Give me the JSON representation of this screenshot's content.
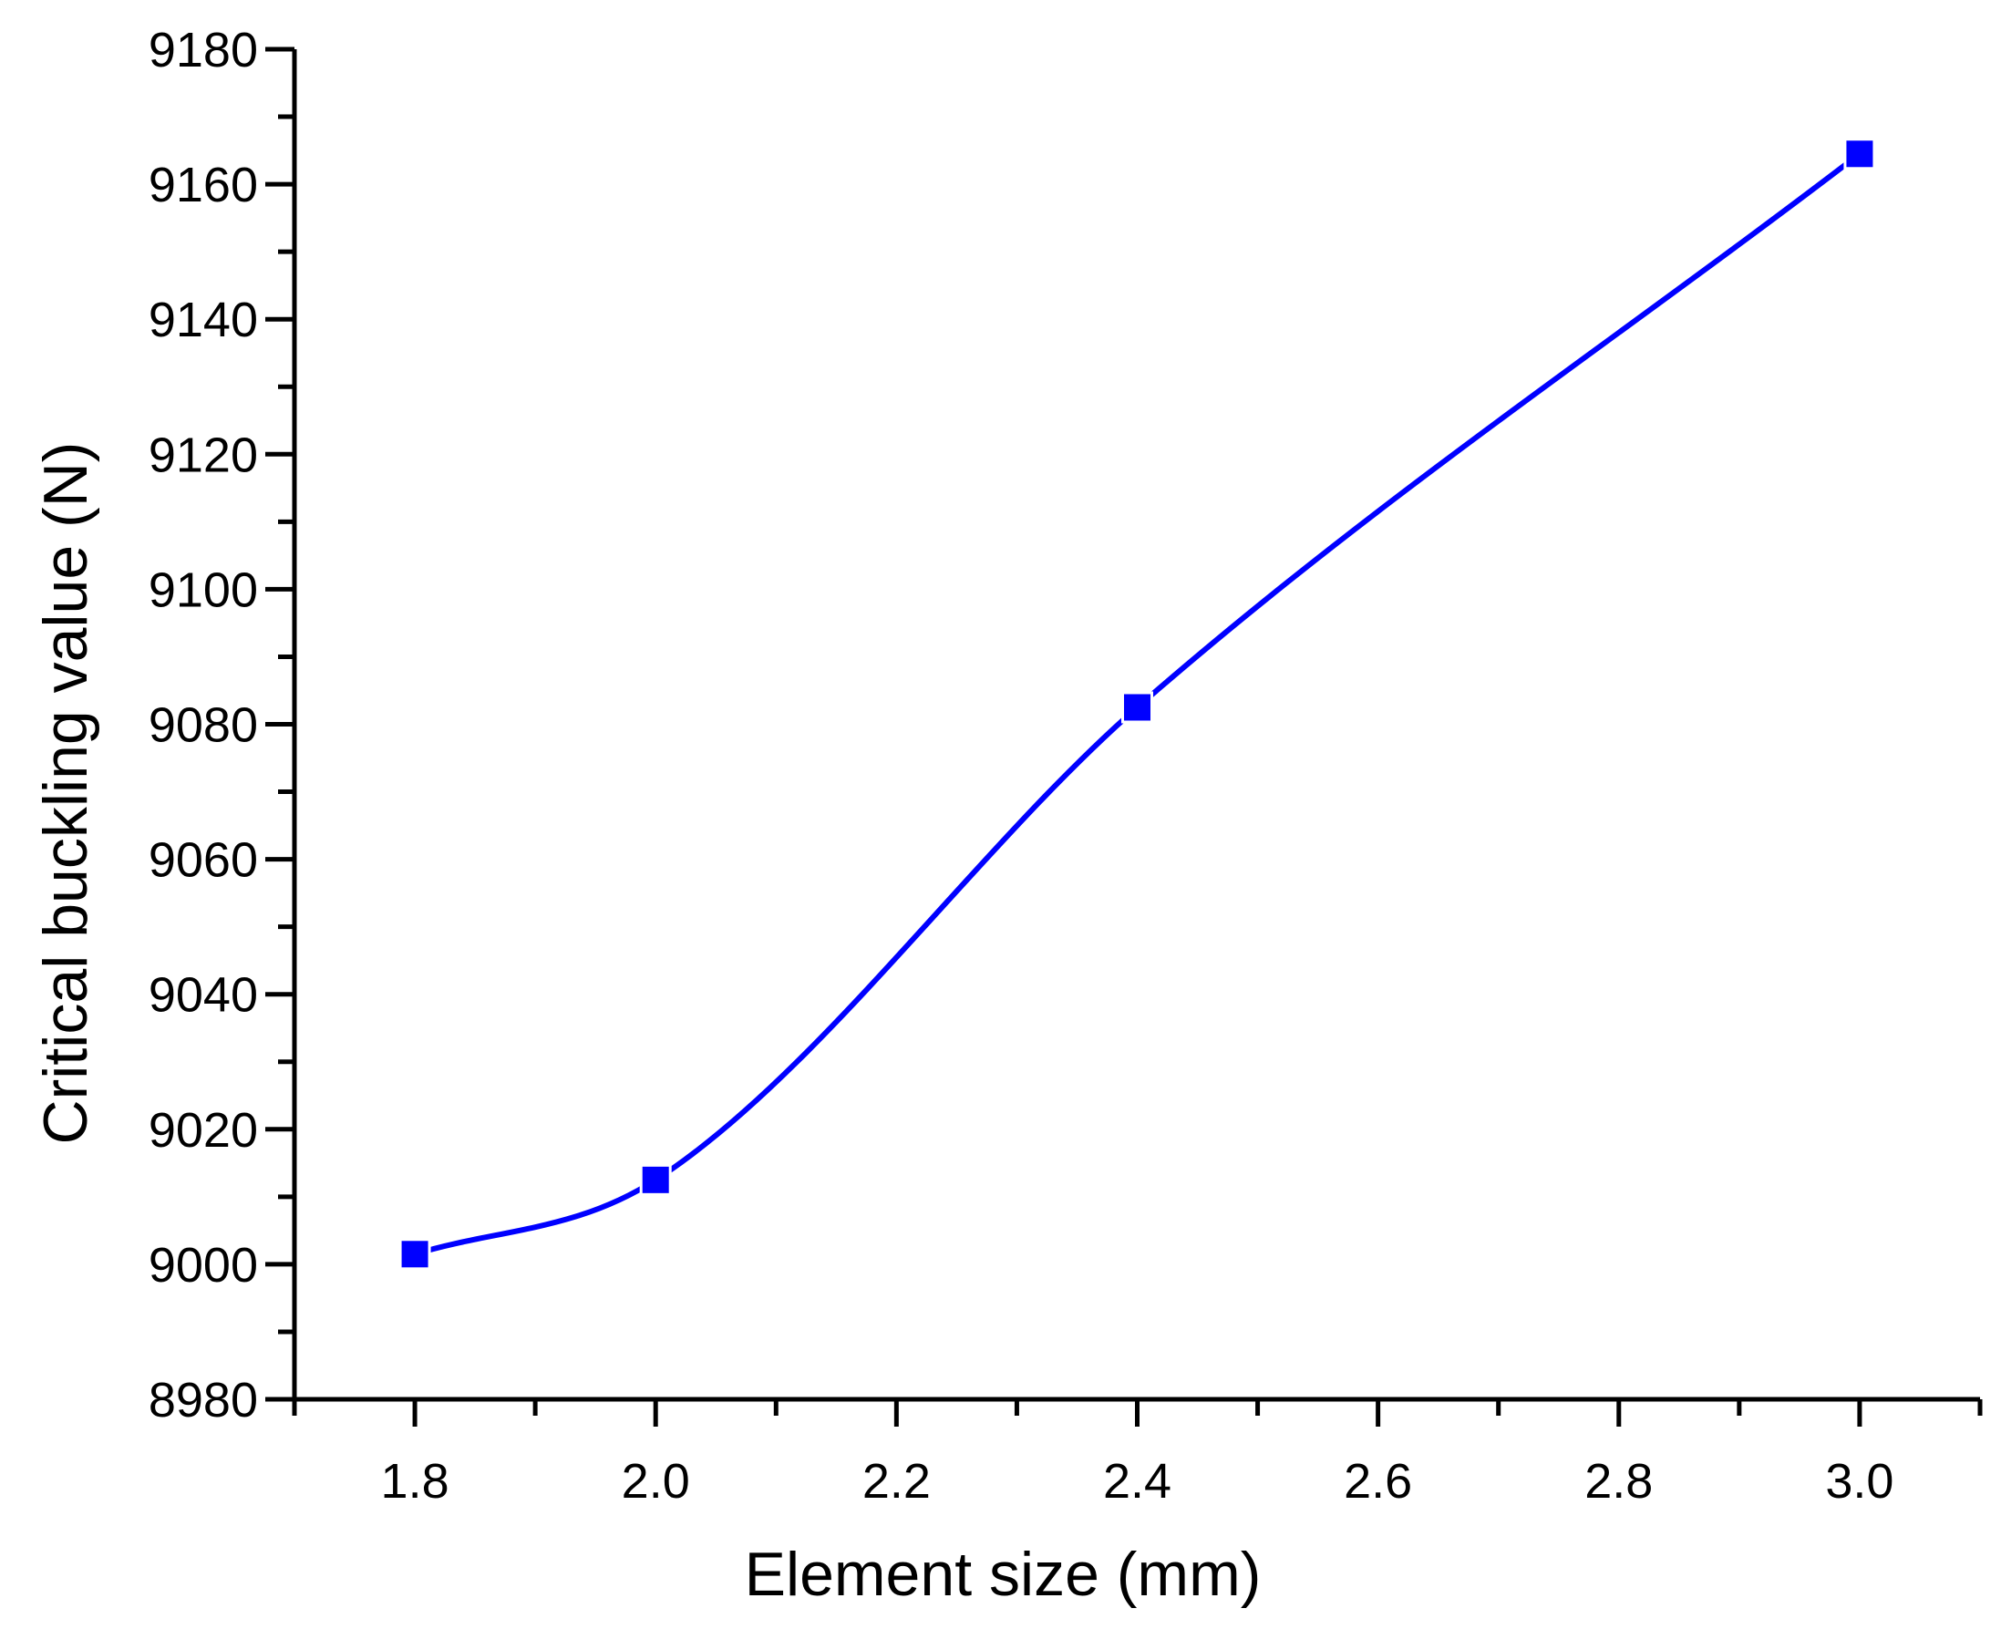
{
  "chart_data": {
    "type": "line",
    "title": "",
    "xlabel": "Element size (mm)",
    "ylabel": "Critical buckling value (N)",
    "x": [
      1.8,
      2.0,
      2.4,
      3.0
    ],
    "series": [
      {
        "values": [
          9001.5,
          9012.5,
          9082.5,
          9164.5
        ]
      }
    ],
    "xlim": [
      1.7,
      3.1
    ],
    "ylim": [
      8980,
      9180
    ],
    "xticks": [
      "1.8",
      "2.0",
      "2.2",
      "2.4",
      "2.6",
      "2.8",
      "3.0"
    ],
    "yticks": [
      "8980",
      "9000",
      "9020",
      "9040",
      "9060",
      "9080",
      "9100",
      "9120",
      "9140",
      "9160",
      "9180"
    ],
    "grid": false,
    "legend": "none",
    "line_style": "smooth spline with square markers",
    "colors": {
      "series": "#0000ff",
      "axis": "#000000"
    }
  }
}
